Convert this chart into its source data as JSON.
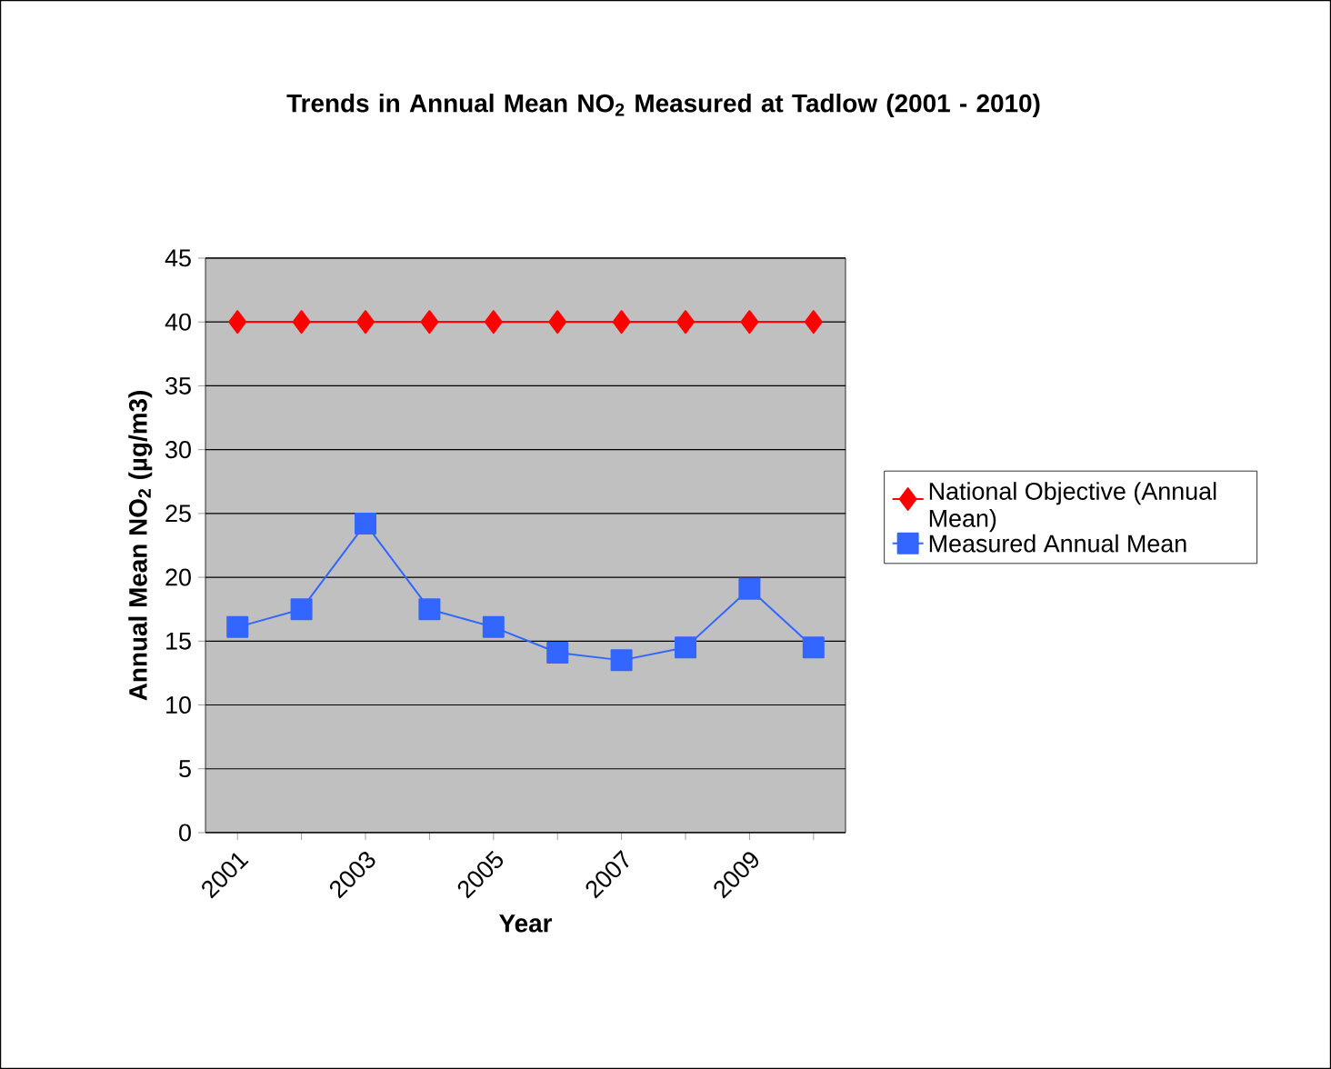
{
  "chart_data": {
    "type": "line",
    "title": "Trends in Annual Mean NO$_{2}$ Measured at Tadlow (2001 - 2010)",
    "xlabel": "Year",
    "ylabel": "Annual Mean NO$_{2}$ (µg/m3)",
    "categories": [
      "2001",
      null,
      "2003",
      null,
      "2005",
      null,
      "2007",
      null,
      "2009",
      null
    ],
    "series": [
      {
        "name": "National Objective (Annual Mean)",
        "color": "#ff0000",
        "marker": "diamond",
        "values": [
          40,
          40,
          40,
          40,
          40,
          40,
          40,
          40,
          40,
          40
        ]
      },
      {
        "name": "Measured Annual Mean",
        "color": "#3366ff",
        "marker": "square",
        "values": [
          16.1,
          17.5,
          24.2,
          17.5,
          16.1,
          14.1,
          13.5,
          14.5,
          19.1,
          14.5
        ]
      }
    ],
    "ylim": [
      0,
      45
    ],
    "yticks": [
      0,
      5,
      10,
      15,
      20,
      25,
      30,
      35,
      40,
      45
    ],
    "grid": "y",
    "legend": "right"
  }
}
